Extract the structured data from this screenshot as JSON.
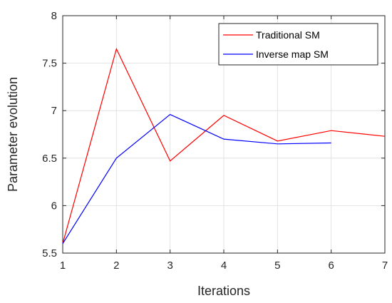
{
  "chart_data": {
    "type": "line",
    "x": [
      1,
      2,
      3,
      4,
      5,
      6,
      7
    ],
    "series": [
      {
        "name": "Traditional SM",
        "color": "#ff0000",
        "values": [
          5.6,
          7.65,
          6.47,
          6.95,
          6.68,
          6.79,
          6.73
        ]
      },
      {
        "name": "Inverse map SM",
        "color": "#0000ff",
        "values": [
          5.6,
          6.5,
          6.96,
          6.7,
          6.65,
          6.66,
          null
        ]
      }
    ],
    "xlabel": "Iterations",
    "ylabel": "Parameter evolution",
    "xlim": [
      1,
      7
    ],
    "ylim": [
      5.5,
      8
    ],
    "xticks": [
      "1",
      "2",
      "3",
      "4",
      "5",
      "6",
      "7"
    ],
    "yticks": [
      "5.5",
      "6",
      "6.5",
      "7",
      "7.5",
      "8"
    ],
    "grid": true,
    "legend_position": "top-right"
  }
}
